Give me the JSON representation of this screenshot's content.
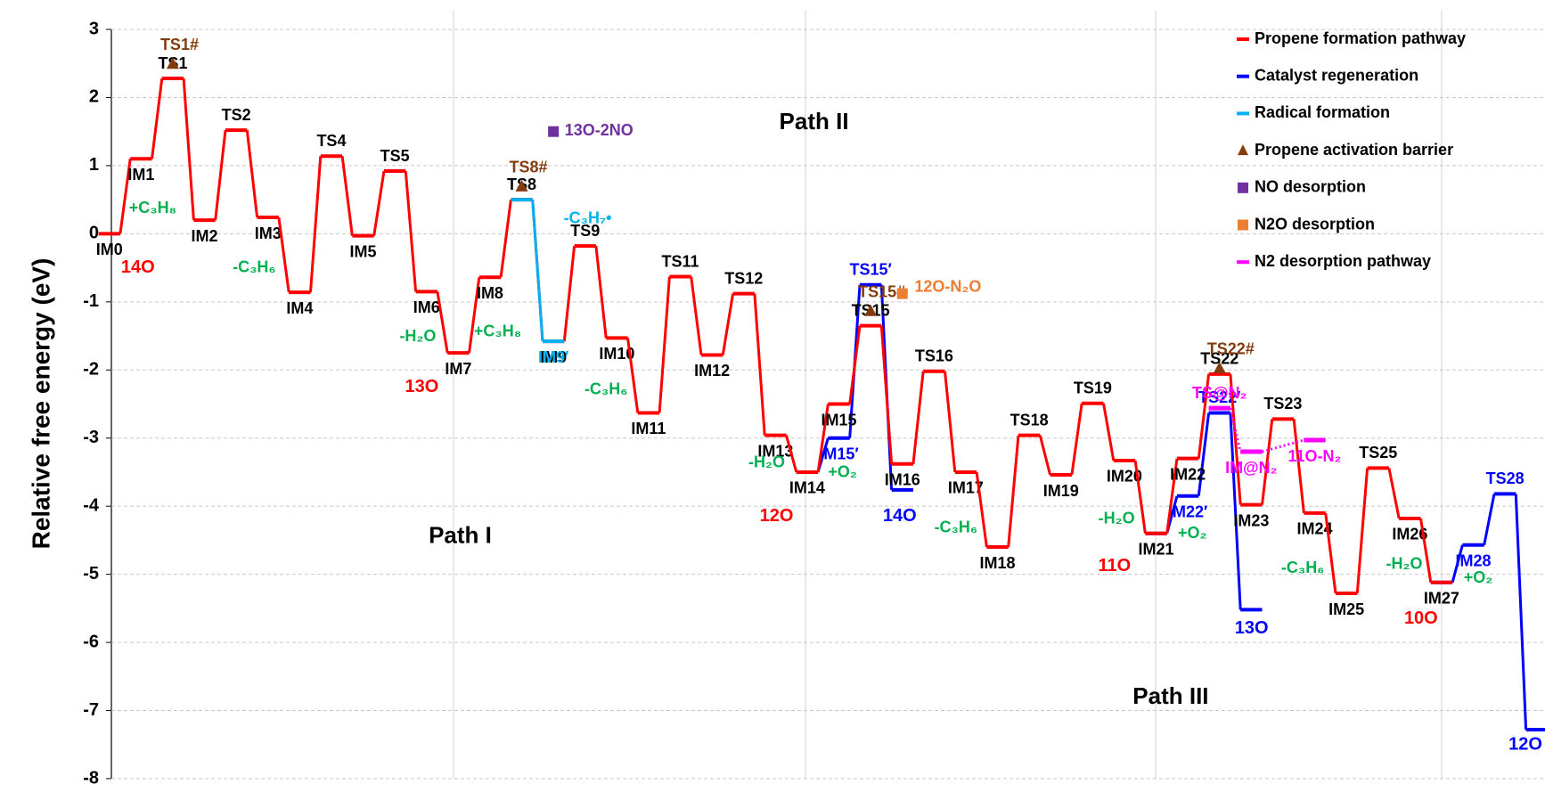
{
  "chart_data": {
    "type": "line",
    "y_label": "Relative free energy  (eV)",
    "ylim": [
      -8,
      3
    ],
    "yticks": [
      3,
      2,
      1,
      0,
      -1,
      -2,
      -3,
      -4,
      -5,
      -6,
      -7,
      -8
    ],
    "grid": true,
    "legend": "upper right",
    "series": [
      {
        "name": "Propene formation pathway",
        "color": "#ff0000",
        "kind": "line",
        "x": [
          0,
          1,
          2,
          3,
          4,
          5,
          6,
          7,
          8,
          9,
          10,
          11,
          12,
          13,
          14,
          15,
          16,
          17,
          18,
          19,
          20,
          21,
          22,
          23,
          24,
          25,
          26,
          27,
          28,
          29,
          30,
          31,
          32,
          33,
          34,
          35,
          36,
          37,
          38,
          39,
          40,
          41,
          42
        ],
        "values": [
          0,
          1.1,
          2.28,
          0.2,
          1.52,
          0.24,
          -0.86,
          1.14,
          -0.03,
          0.92,
          -0.85,
          -1.75,
          -0.64,
          0.5,
          -1.58,
          -0.18,
          -1.53,
          -2.63,
          -0.63,
          -1.78,
          -0.88,
          -2.96,
          -3.5,
          -2.5,
          -1.35,
          -3.38,
          -2.02,
          -3.5,
          -4.6,
          -2.96,
          -3.54,
          -2.49,
          -3.33,
          -4.4,
          -3.3,
          -2.06,
          -3.98,
          -2.72,
          -4.1,
          -5.28,
          -3.44,
          -4.18,
          -5.12
        ],
        "labels": [
          "IM0",
          "IM1",
          "TS1",
          "IM2",
          "TS2",
          "IM3",
          "IM4",
          "TS4",
          "IM5",
          "TS5",
          "IM6",
          "IM7",
          "IM8",
          "TS8",
          "IM9",
          "TS9",
          "IM10",
          "IM11",
          "TS11",
          "IM12",
          "TS12",
          "IM13",
          "IM14",
          "IM15",
          "TS15",
          "IM16",
          "TS16",
          "IM17",
          "IM18",
          "TS18",
          "IM19",
          "TS19",
          "IM20",
          "IM21",
          "IM22",
          "TS22",
          "IM23",
          "TS23",
          "IM24",
          "IM25",
          "TS25",
          "IM26",
          "IM27"
        ]
      },
      {
        "name": "Catalyst regeneration",
        "color": "#0000ff",
        "kind": "line",
        "x": [
          22,
          23,
          24,
          25,
          null,
          33,
          34,
          35,
          36,
          null,
          42,
          43,
          44,
          45
        ],
        "values": [
          -3.5,
          -3.0,
          -0.75,
          -3.76,
          null,
          -4.4,
          -3.85,
          -2.63,
          -5.52,
          null,
          -5.12,
          -4.57,
          -3.82,
          -7.28
        ],
        "labels": [
          null,
          "IM15′",
          "TS15′",
          null,
          null,
          null,
          "IM22′",
          "TS22′",
          null,
          null,
          null,
          "IM28",
          "TS28",
          null
        ]
      },
      {
        "name": "Radical formation",
        "color": "#00b0f0",
        "kind": "line",
        "x": [
          13,
          14
        ],
        "values": [
          0.5,
          -1.58
        ],
        "labels": [
          null,
          "IM9′"
        ]
      },
      {
        "name": "Propene activation barrier",
        "color": "#843c0c",
        "kind": "marker",
        "marker": "triangle",
        "x": [
          2,
          13,
          24,
          35
        ],
        "values": [
          2.5,
          0.7,
          -1.13,
          -1.97
        ],
        "labels": [
          "TS1#",
          "TS8#",
          "TS15#",
          "TS22#"
        ]
      },
      {
        "name": "NO desorption",
        "color": "#7030a0",
        "kind": "marker",
        "marker": "square",
        "x": [
          14
        ],
        "values": [
          1.5
        ]
      },
      {
        "name": "N2O desorption",
        "color": "#ed7d31",
        "kind": "marker",
        "marker": "square",
        "x": [
          25
        ],
        "values": [
          -0.88
        ]
      },
      {
        "name": "N2 desorption pathway",
        "color": "#ff00ff",
        "kind": "line",
        "dotted": true,
        "x": [
          35,
          36,
          38
        ],
        "values": [
          -2.56,
          -3.2,
          -3.03
        ],
        "labels": [
          "TS@N₂",
          "IM@N₂",
          "11O-N₂"
        ]
      }
    ],
    "annotations": [
      {
        "text": "14O",
        "color": "#ff0000"
      },
      {
        "text": "13O",
        "color": "#ff0000"
      },
      {
        "text": "12O",
        "color": "#ff0000"
      },
      {
        "text": "11O",
        "color": "#ff0000"
      },
      {
        "text": "10O",
        "color": "#ff0000"
      },
      {
        "text": "14O",
        "color": "#0000ff"
      },
      {
        "text": "13O",
        "color": "#0000ff"
      },
      {
        "text": "12O",
        "color": "#0000ff"
      },
      {
        "text": "+C₃H₈",
        "color": "#00b050"
      },
      {
        "text": "-C₃H₆",
        "color": "#00b050"
      },
      {
        "text": "-H₂O",
        "color": "#00b050"
      },
      {
        "text": "+C₃H₈",
        "color": "#00b050"
      },
      {
        "text": "-C₃H₆",
        "color": "#00b050"
      },
      {
        "text": "-H₂O",
        "color": "#00b050"
      },
      {
        "text": "+O₂",
        "color": "#00b050"
      },
      {
        "text": "-C₃H₆",
        "color": "#00b050"
      },
      {
        "text": "-H₂O",
        "color": "#00b050"
      },
      {
        "text": "+O₂",
        "color": "#00b050"
      },
      {
        "text": "-C₃H₆",
        "color": "#00b050"
      },
      {
        "text": "-H₂O",
        "color": "#00b050"
      },
      {
        "text": "+O₂",
        "color": "#00b050"
      },
      {
        "text": "-C₃H₇•",
        "color": "#00b0f0"
      },
      {
        "text": "13O-2NO",
        "color": "#7030a0"
      },
      {
        "text": "12O-N₂O",
        "color": "#ed7d31"
      },
      {
        "text": "Path I",
        "color": "#000000"
      },
      {
        "text": "Path II",
        "color": "#000000"
      },
      {
        "text": "Path III",
        "color": "#000000"
      }
    ]
  }
}
